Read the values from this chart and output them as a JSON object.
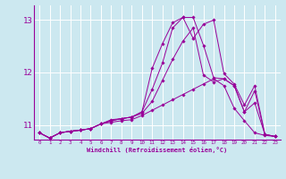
{
  "xlabel": "Windchill (Refroidissement éolien,°C)",
  "bg_color": "#cce8f0",
  "grid_color": "#ffffff",
  "line_color": "#990099",
  "xlim": [
    -0.5,
    23.5
  ],
  "ylim": [
    10.72,
    13.28
  ],
  "xticks": [
    0,
    1,
    2,
    3,
    4,
    5,
    6,
    7,
    8,
    9,
    10,
    11,
    12,
    13,
    14,
    15,
    16,
    17,
    18,
    19,
    20,
    21,
    22,
    23
  ],
  "yticks": [
    11,
    12,
    13
  ],
  "ytick_labels": [
    "11",
    "12",
    "13"
  ],
  "series": [
    [
      10.85,
      10.75,
      10.85,
      10.88,
      10.9,
      10.93,
      11.02,
      11.05,
      11.08,
      11.1,
      11.18,
      11.28,
      11.38,
      11.48,
      11.58,
      11.68,
      11.78,
      11.88,
      11.75,
      11.32,
      11.08,
      10.85,
      10.8,
      10.78
    ],
    [
      10.85,
      10.75,
      10.85,
      10.88,
      10.9,
      10.93,
      11.02,
      11.08,
      11.12,
      11.15,
      11.22,
      11.45,
      11.85,
      12.25,
      12.6,
      12.85,
      11.95,
      11.82,
      11.88,
      11.75,
      11.25,
      11.65,
      10.82,
      10.78
    ],
    [
      10.85,
      10.75,
      10.85,
      10.88,
      10.9,
      10.93,
      11.02,
      11.08,
      11.12,
      11.15,
      11.25,
      11.68,
      12.18,
      12.85,
      13.05,
      13.05,
      12.52,
      11.9,
      11.88,
      11.75,
      11.25,
      11.42,
      10.82,
      10.78
    ],
    [
      10.85,
      10.75,
      10.85,
      10.88,
      10.9,
      10.93,
      11.02,
      11.1,
      11.12,
      11.15,
      11.25,
      12.08,
      12.55,
      12.95,
      13.05,
      12.65,
      12.92,
      13.0,
      11.98,
      11.78,
      11.38,
      11.75,
      10.82,
      10.78
    ]
  ]
}
